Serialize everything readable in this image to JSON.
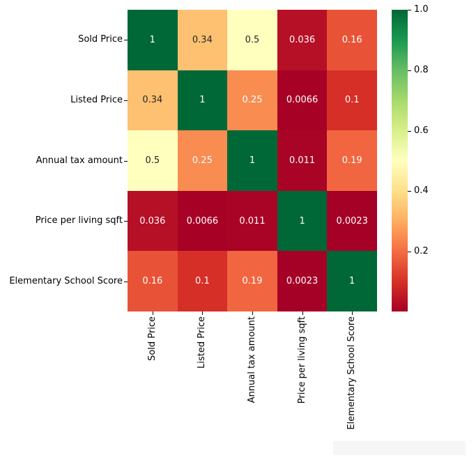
{
  "figure": {
    "background": "#ffffff",
    "artifact_color": "#f6f6f6"
  },
  "chart_data": {
    "type": "heatmap",
    "title": "",
    "xlabel": "",
    "ylabel": "",
    "categories": [
      "Sold Price",
      "Listed Price",
      "Annual tax amount",
      "Price per living sqft",
      "Elementary School Score"
    ],
    "matrix": [
      [
        1,
        0.34,
        0.5,
        0.036,
        0.16
      ],
      [
        0.34,
        1,
        0.25,
        0.0066,
        0.1
      ],
      [
        0.5,
        0.25,
        1,
        0.011,
        0.19
      ],
      [
        0.036,
        0.0066,
        0.011,
        1,
        0.0023
      ],
      [
        0.16,
        0.1,
        0.19,
        0.0023,
        1
      ]
    ],
    "vmin": 0.0023,
    "vmax": 1.0,
    "grid": false,
    "colormap_name": "RdYlGn",
    "colormap_stops": [
      "#a50026",
      "#d73027",
      "#f46d43",
      "#fdae61",
      "#fee08b",
      "#ffffbf",
      "#d9ef8b",
      "#a6d96a",
      "#66bd63",
      "#1a9850",
      "#006837"
    ],
    "annotation_dark_color": "#262626",
    "annotation_light_color": "#ffffff",
    "axis_text_color": "#000000",
    "legend_position": "right-colorbar",
    "colorbar": {
      "tick_labels": [
        "1.0",
        "0.8",
        "0.6",
        "0.4",
        "0.2"
      ],
      "tick_values": [
        1.0,
        0.8,
        0.6,
        0.4,
        0.2
      ]
    }
  }
}
